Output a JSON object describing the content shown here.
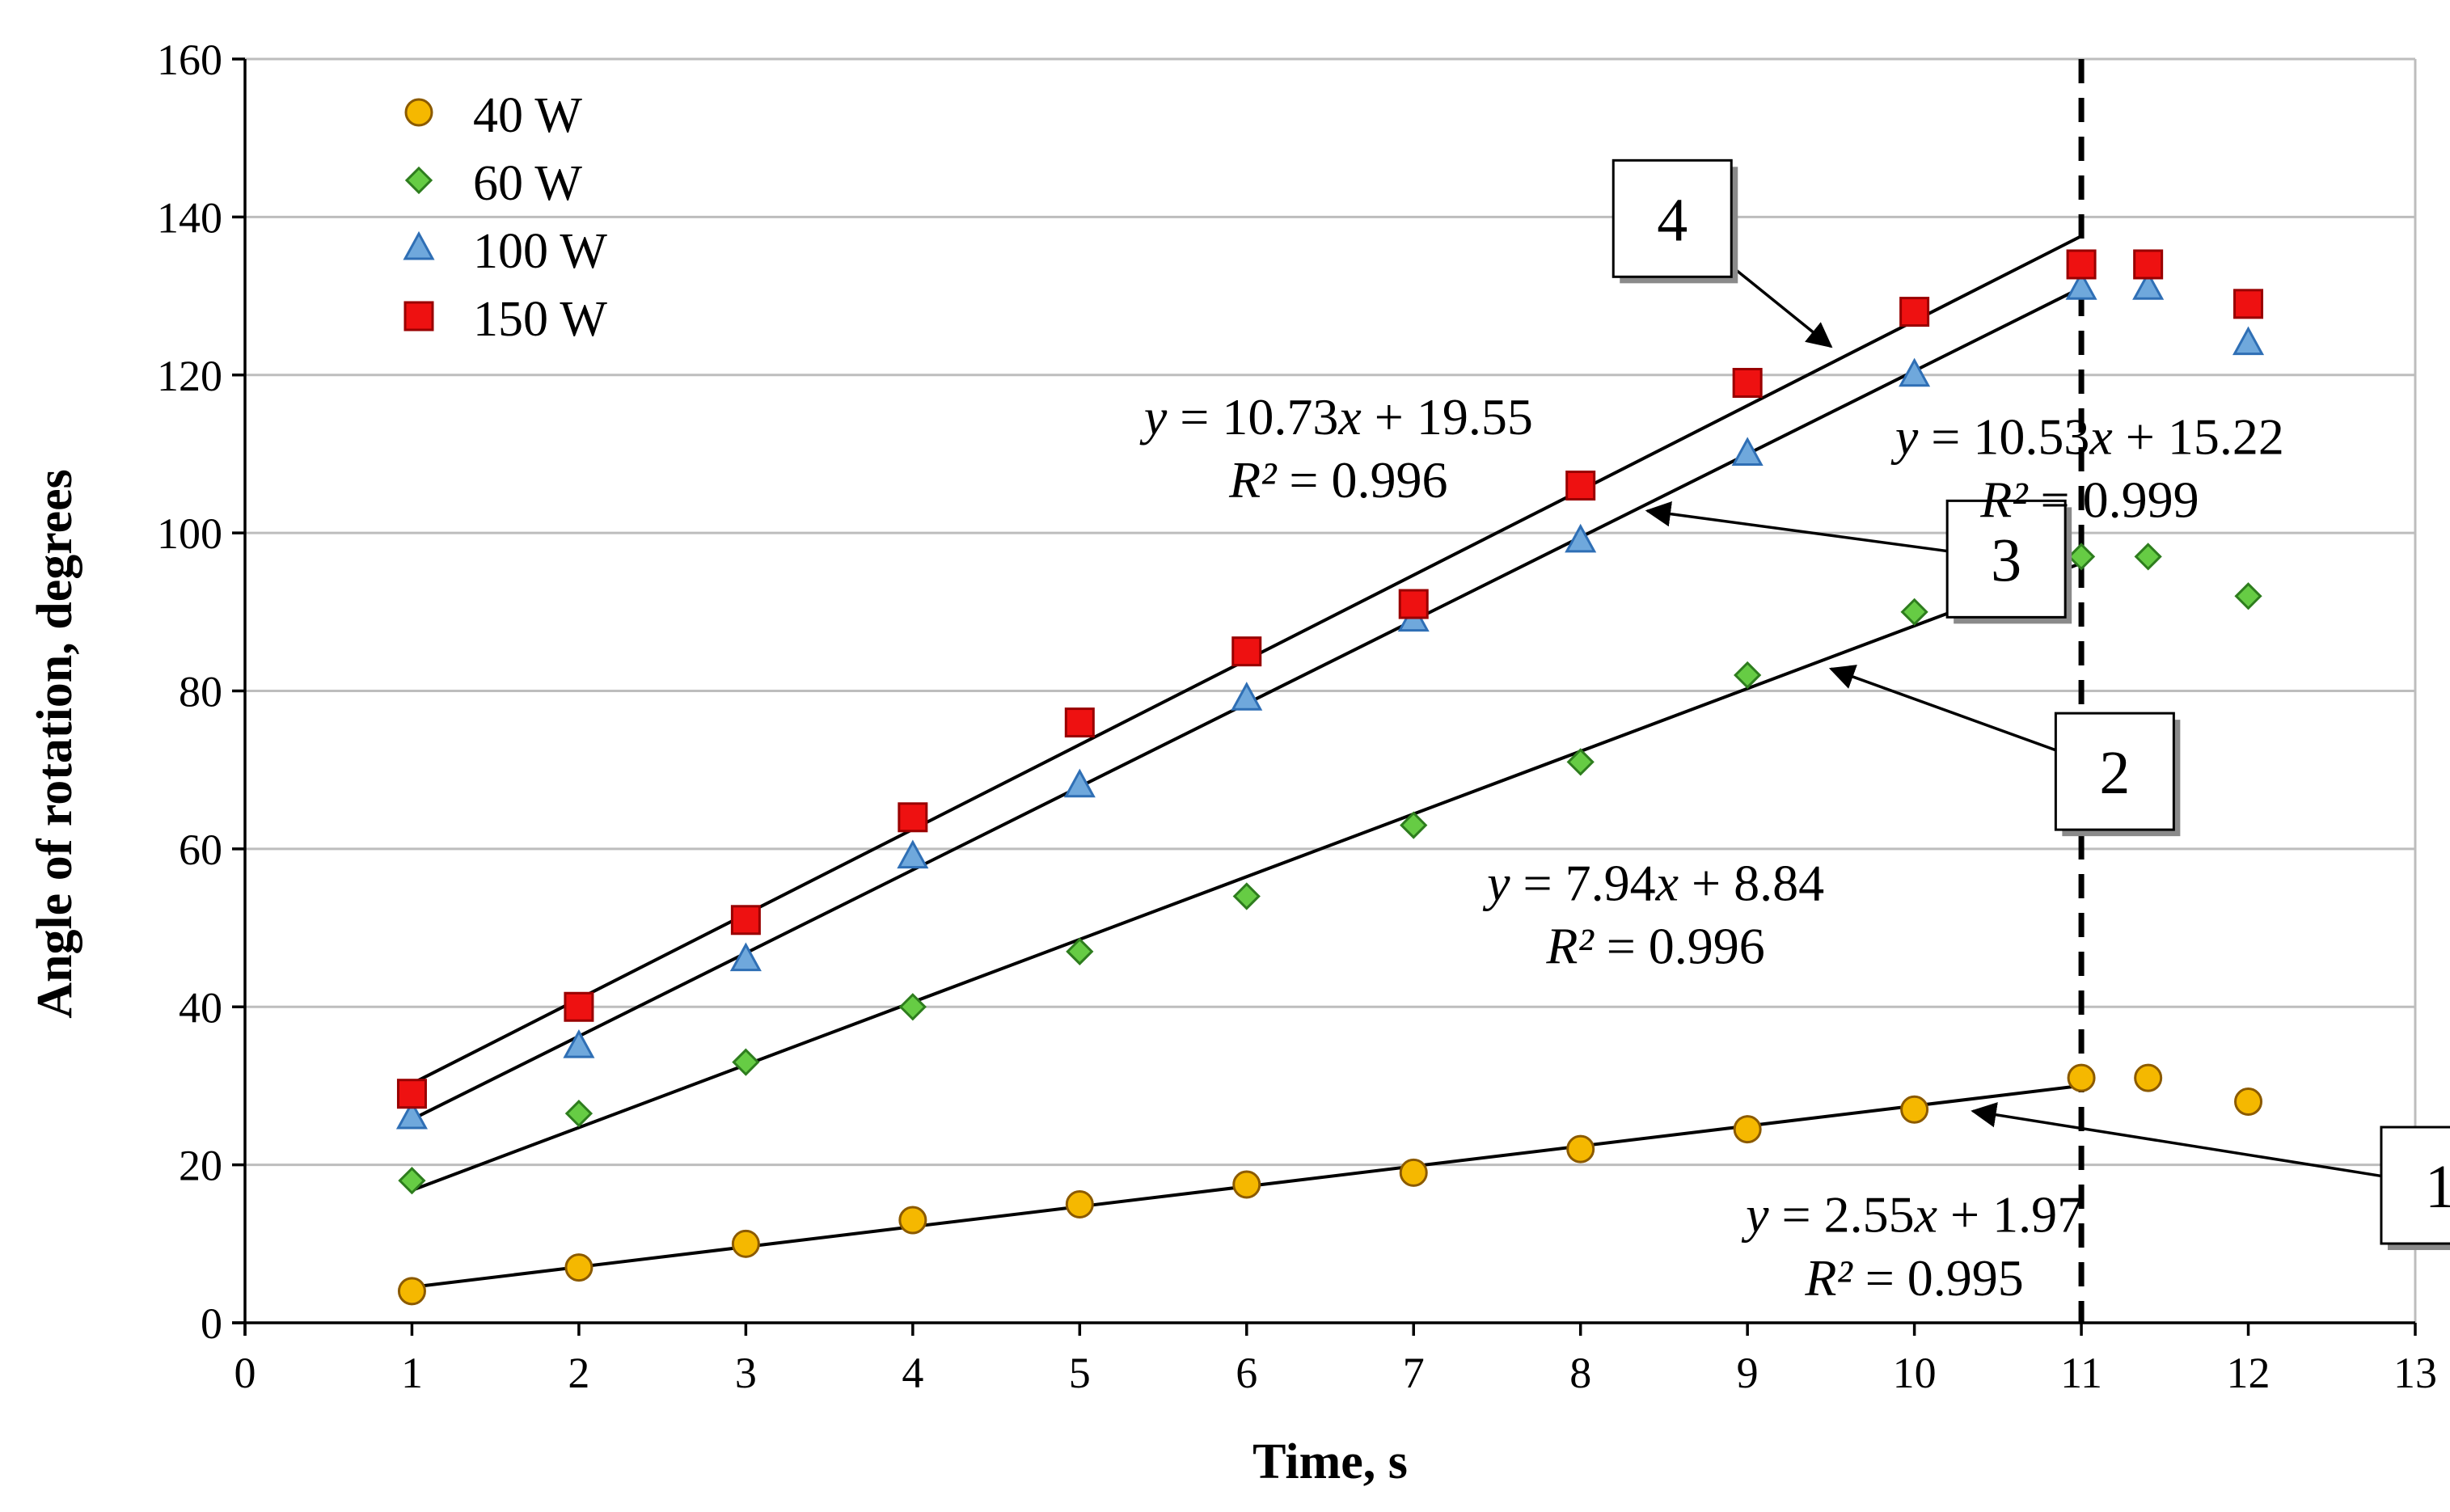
{
  "chart_data": {
    "type": "scatter",
    "title": "",
    "xlabel": "Time, s",
    "ylabel": "Angle of rotation, degrees",
    "xlim": [
      0,
      13
    ],
    "ylim": [
      0,
      160
    ],
    "xticks": [
      0,
      1,
      2,
      3,
      4,
      5,
      6,
      7,
      8,
      9,
      10,
      11,
      12,
      13
    ],
    "yticks": [
      0,
      20,
      40,
      60,
      80,
      100,
      120,
      140,
      160
    ],
    "grid": "horizontal",
    "legend_position": "top-left",
    "vertical_marker_x": 11,
    "series": [
      {
        "name": "40 W",
        "marker": "circle",
        "color": "#F5B800",
        "stroke": "#8B5A00",
        "points": [
          [
            1,
            4
          ],
          [
            2,
            7
          ],
          [
            3,
            10
          ],
          [
            4,
            13
          ],
          [
            5,
            15
          ],
          [
            6,
            17.5
          ],
          [
            7,
            19
          ],
          [
            8,
            22
          ],
          [
            9,
            24.5
          ],
          [
            10,
            27
          ],
          [
            11,
            31
          ],
          [
            11.4,
            31
          ],
          [
            12,
            28
          ]
        ],
        "fit": {
          "slope": 2.55,
          "intercept": 1.97,
          "x_range": [
            1,
            11
          ],
          "equation_prefix": "y",
          "equation_body": " = 2.55",
          "equation_x": "x",
          "equation_suffix": " + 1.97",
          "r2_label": "R²",
          "r2_value": " = 0.995"
        },
        "label_box": "1",
        "box_anchor": [
          13.15,
          17.4
        ],
        "arrow_tip": [
          10.35,
          26.8
        ],
        "equation_anchor": [
          10.0,
          11.5
        ],
        "r2_anchor": [
          10.0,
          3.5
        ]
      },
      {
        "name": "60 W",
        "marker": "diamond",
        "color": "#66CC44",
        "stroke": "#2E7D1E",
        "points": [
          [
            1,
            18
          ],
          [
            2,
            26.5
          ],
          [
            3,
            33
          ],
          [
            4,
            40
          ],
          [
            5,
            47
          ],
          [
            6,
            54
          ],
          [
            7,
            63
          ],
          [
            8,
            71
          ],
          [
            9,
            82
          ],
          [
            10,
            90
          ],
          [
            11,
            97
          ],
          [
            11.4,
            97
          ],
          [
            12,
            92
          ]
        ],
        "fit": {
          "slope": 7.94,
          "intercept": 8.84,
          "x_range": [
            1,
            11
          ],
          "equation_prefix": "y",
          "equation_body": " = 7.94",
          "equation_x": "x",
          "equation_suffix": " + 8.84",
          "r2_label": "R²",
          "r2_value": " = 0.996"
        },
        "label_box": "2",
        "box_anchor": [
          11.2,
          69.8
        ],
        "arrow_tip": [
          9.5,
          82.8
        ],
        "equation_anchor": [
          8.45,
          53.5
        ],
        "r2_anchor": [
          8.45,
          45.5
        ]
      },
      {
        "name": "100 W",
        "marker": "triangle",
        "color": "#6FA8DC",
        "stroke": "#2F6FB5",
        "points": [
          [
            1,
            26
          ],
          [
            2,
            35
          ],
          [
            3,
            46
          ],
          [
            4,
            59
          ],
          [
            5,
            68
          ],
          [
            6,
            79
          ],
          [
            7,
            89
          ],
          [
            8,
            99
          ],
          [
            9,
            110
          ],
          [
            10,
            120
          ],
          [
            11,
            131
          ],
          [
            11.4,
            131
          ],
          [
            12,
            124
          ]
        ],
        "fit": {
          "slope": 10.53,
          "intercept": 15.22,
          "x_range": [
            1,
            11
          ],
          "equation_prefix": "y",
          "equation_body": " = 10.53",
          "equation_x": "x",
          "equation_suffix": " + 15.22",
          "r2_label": "R²",
          "r2_value": " = 0.999"
        },
        "label_box": "3",
        "box_anchor": [
          10.55,
          96.7
        ],
        "arrow_tip": [
          8.4,
          102.8
        ],
        "equation_anchor": [
          11.05,
          110.0
        ],
        "r2_anchor": [
          11.05,
          102.0
        ]
      },
      {
        "name": "150 W",
        "marker": "square",
        "color": "#EE1111",
        "stroke": "#990000",
        "points": [
          [
            1,
            29
          ],
          [
            2,
            40
          ],
          [
            3,
            51
          ],
          [
            4,
            64
          ],
          [
            5,
            76
          ],
          [
            6,
            85
          ],
          [
            7,
            91
          ],
          [
            8,
            106
          ],
          [
            9,
            119
          ],
          [
            10,
            128
          ],
          [
            11,
            134
          ],
          [
            11.4,
            134
          ],
          [
            12,
            129
          ]
        ],
        "fit": {
          "slope": 10.73,
          "intercept": 19.55,
          "x_range": [
            1,
            11
          ],
          "equation_prefix": "y",
          "equation_body": " = 10.73",
          "equation_x": "x",
          "equation_suffix": " + 19.55",
          "r2_label": "R²",
          "r2_value": " = 0.996"
        },
        "label_box": "4",
        "box_anchor": [
          8.55,
          139.8
        ],
        "arrow_tip": [
          9.5,
          123.6
        ],
        "equation_anchor": [
          6.55,
          112.5
        ],
        "r2_anchor": [
          6.55,
          104.5
        ]
      }
    ]
  }
}
